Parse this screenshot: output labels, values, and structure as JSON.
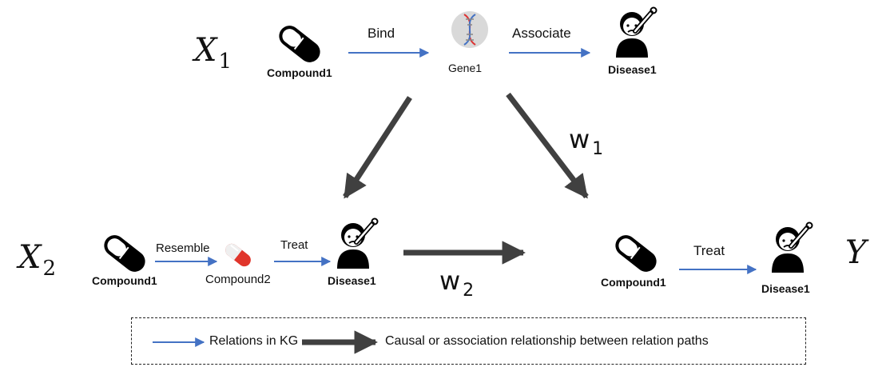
{
  "colors": {
    "kg_relation_arrow": "#4472c4",
    "causal_arrow": "#404040",
    "pill_body": "#000000",
    "pill_red": "#e0352b",
    "gene_circle": "#d9d9d9"
  },
  "paths": {
    "x1": {
      "label_main": "X",
      "label_sub": "1",
      "compound": "Compound1",
      "relation1": "Bind",
      "gene": "Gene1",
      "relation2": "Associate",
      "disease": "Disease1"
    },
    "x2": {
      "label_main": "X",
      "label_sub": "2",
      "compound": "Compound1",
      "relation1": "Resemble",
      "compound2": "Compound2",
      "relation2": "Treat",
      "disease": "Disease1"
    },
    "y": {
      "label_main": "Y",
      "compound": "Compound1",
      "relation": "Treat",
      "disease": "Disease1"
    }
  },
  "weights": {
    "w1_main": "w",
    "w1_sub": "1",
    "w2_main": "w",
    "w2_sub": "2"
  },
  "legend": {
    "kg_relations": "Relations in KG",
    "causal": "Causal or association relationship between relation paths"
  },
  "icons": [
    "pill-icon",
    "dna-icon",
    "sick-person-thermometer-icon",
    "red-pill-icon"
  ]
}
